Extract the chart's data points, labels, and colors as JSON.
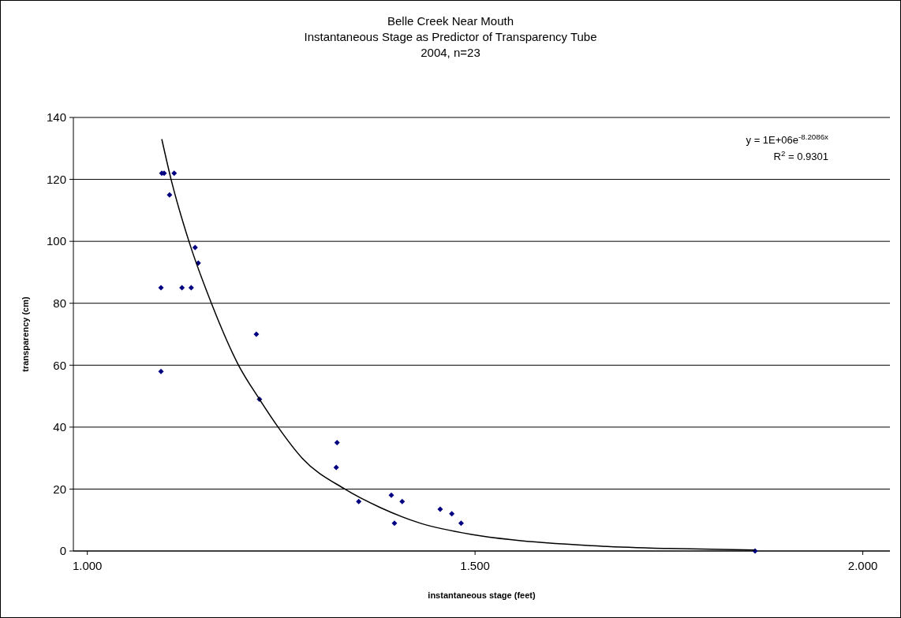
{
  "chart_data": {
    "type": "scatter",
    "title": "Belle Creek Near Mouth\nInstantaneous Stage as Predictor of Transparency Tube\n2004, n=23",
    "xlabel": "instantaneous stage (feet)",
    "ylabel": "transparency (cm)",
    "xlim": [
      0.982,
      2.035
    ],
    "xticks": [
      {
        "value": 1,
        "label": "1.000"
      },
      {
        "value": 1.5,
        "label": "1.500"
      },
      {
        "value": 2,
        "label": "2.000"
      }
    ],
    "ylim": [
      0,
      140
    ],
    "yticks": [
      0,
      20,
      40,
      60,
      80,
      100,
      120,
      140
    ],
    "grid": "y",
    "marker": "diamond",
    "series": [
      {
        "color": "#000080",
        "x": [
          1.096,
          1.099,
          1.112,
          1.106,
          1.139,
          1.143,
          1.095,
          1.122,
          1.134,
          1.218,
          1.095,
          1.222,
          1.322,
          1.321,
          1.35,
          1.392,
          1.396,
          1.406,
          1.455,
          1.47,
          1.482,
          1.861
        ],
        "values": [
          122,
          122,
          122,
          115,
          98,
          93,
          85,
          85,
          85,
          70,
          58,
          49,
          35,
          27,
          16,
          18,
          9,
          16,
          13.5,
          12,
          9,
          0
        ]
      },
      {
        "type": "line",
        "color": "#000000",
        "marker": "none",
        "line_style": "solid",
        "x": [
          1.096,
          1.108,
          1.131,
          1.16,
          1.195,
          1.222,
          1.246,
          1.277,
          1.332,
          1.378,
          1.429,
          1.497,
          1.548,
          1.65,
          1.75,
          1.861
        ],
        "values": [
          133,
          120,
          100,
          80,
          60,
          49,
          40,
          30,
          20,
          14,
          9,
          5.3,
          3.6,
          1.7,
          0.8,
          0.3
        ]
      }
    ],
    "annotations": [
      "y = 1E+06e$^{-8.2086x}$",
      "R$^{2}$ = 0.9301"
    ]
  }
}
